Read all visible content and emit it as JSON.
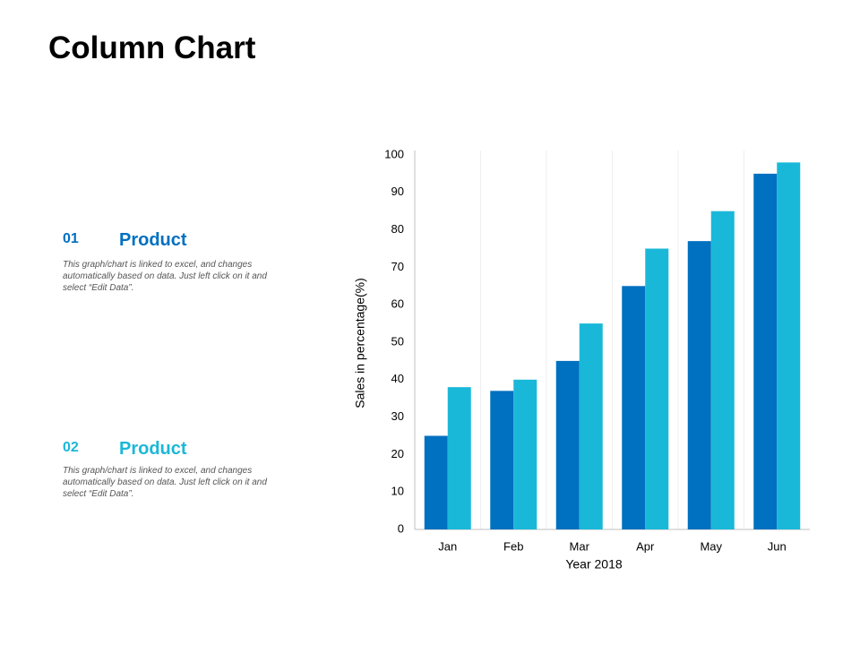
{
  "header": {
    "title": "Column Chart"
  },
  "items": [
    {
      "number": "01",
      "title": "Product",
      "color": "#0070c0",
      "text": "This graph/chart is linked to excel, and changes automatically based on data. Just left click on it and select “Edit Data”."
    },
    {
      "number": "02",
      "title": "Product",
      "color": "#1ab8d8",
      "text": "This graph/chart is linked to excel, and changes automatically based on data. Just left click on it and select “Edit Data”."
    }
  ],
  "chart_data": {
    "type": "bar",
    "x_label": "Year 2018",
    "y_label": "Sales in percentage(%)",
    "categories": [
      "Jan",
      "Feb",
      "Mar",
      "Apr",
      "May",
      "Jun"
    ],
    "series": [
      {
        "color": "#0070c0",
        "values": [
          25,
          37,
          45,
          65,
          77,
          95
        ]
      },
      {
        "color": "#1ab8d8",
        "values": [
          38,
          40,
          55,
          75,
          85,
          98
        ]
      }
    ],
    "ylim": [
      0,
      100
    ],
    "yticks": [
      0,
      10,
      20,
      30,
      40,
      50,
      60,
      70,
      80,
      90,
      100
    ]
  }
}
